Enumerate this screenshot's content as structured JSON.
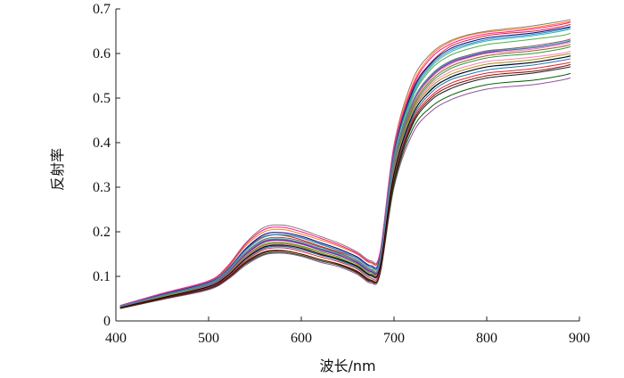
{
  "chart_data": {
    "type": "line",
    "title": "",
    "xlabel": "波长/nm",
    "ylabel": "反射率",
    "xlim": [
      400,
      900
    ],
    "ylim": [
      0,
      0.7
    ],
    "x_ticks": [
      400,
      500,
      600,
      700,
      800,
      900
    ],
    "x_tick_labels": [
      "400",
      "500",
      "600",
      "700",
      "800",
      "900"
    ],
    "y_ticks": [
      0,
      0.1,
      0.2,
      0.3,
      0.4,
      0.5,
      0.6,
      0.7
    ],
    "y_tick_labels": [
      "0",
      "0.1",
      "0.2",
      "0.3",
      "0.4",
      "0.5",
      "0.6",
      "0.7"
    ],
    "grid": false,
    "legend": "none",
    "x": [
      405,
      450,
      500,
      520,
      540,
      560,
      580,
      600,
      620,
      640,
      660,
      675,
      685,
      700,
      720,
      740,
      760,
      780,
      800,
      820,
      850,
      880,
      890
    ],
    "series": [
      {
        "color": "#e41a1c",
        "values": [
          0.033,
          0.058,
          0.085,
          0.115,
          0.16,
          0.19,
          0.192,
          0.182,
          0.168,
          0.155,
          0.14,
          0.12,
          0.14,
          0.38,
          0.52,
          0.58,
          0.615,
          0.63,
          0.64,
          0.645,
          0.65,
          0.66,
          0.665
        ]
      },
      {
        "color": "#377eb8",
        "values": [
          0.03,
          0.052,
          0.078,
          0.1,
          0.14,
          0.165,
          0.168,
          0.16,
          0.148,
          0.136,
          0.12,
          0.1,
          0.12,
          0.33,
          0.46,
          0.52,
          0.545,
          0.56,
          0.57,
          0.575,
          0.58,
          0.59,
          0.595
        ]
      },
      {
        "color": "#4daf4a",
        "values": [
          0.031,
          0.055,
          0.08,
          0.11,
          0.15,
          0.18,
          0.182,
          0.175,
          0.162,
          0.15,
          0.135,
          0.115,
          0.132,
          0.36,
          0.5,
          0.565,
          0.595,
          0.61,
          0.62,
          0.625,
          0.632,
          0.64,
          0.645
        ]
      },
      {
        "color": "#984ea3",
        "values": [
          0.028,
          0.048,
          0.07,
          0.092,
          0.125,
          0.148,
          0.152,
          0.145,
          0.132,
          0.122,
          0.105,
          0.085,
          0.105,
          0.3,
          0.42,
          0.47,
          0.495,
          0.51,
          0.52,
          0.525,
          0.53,
          0.54,
          0.545
        ]
      },
      {
        "color": "#ff7f00",
        "values": [
          0.034,
          0.06,
          0.088,
          0.118,
          0.168,
          0.2,
          0.205,
          0.195,
          0.182,
          0.168,
          0.15,
          0.13,
          0.15,
          0.39,
          0.53,
          0.595,
          0.625,
          0.64,
          0.648,
          0.652,
          0.658,
          0.668,
          0.672
        ]
      },
      {
        "color": "#1a1a1a",
        "values": [
          0.029,
          0.05,
          0.074,
          0.096,
          0.132,
          0.155,
          0.158,
          0.15,
          0.138,
          0.128,
          0.112,
          0.092,
          0.11,
          0.31,
          0.44,
          0.495,
          0.52,
          0.535,
          0.545,
          0.55,
          0.556,
          0.566,
          0.57
        ]
      },
      {
        "color": "#a65628",
        "values": [
          0.032,
          0.056,
          0.082,
          0.108,
          0.15,
          0.178,
          0.182,
          0.174,
          0.16,
          0.148,
          0.132,
          0.112,
          0.13,
          0.35,
          0.48,
          0.54,
          0.57,
          0.585,
          0.595,
          0.6,
          0.606,
          0.615,
          0.62
        ]
      },
      {
        "color": "#f781bf",
        "values": [
          0.03,
          0.053,
          0.077,
          0.102,
          0.142,
          0.168,
          0.172,
          0.165,
          0.152,
          0.14,
          0.124,
          0.104,
          0.122,
          0.335,
          0.47,
          0.53,
          0.558,
          0.572,
          0.582,
          0.586,
          0.592,
          0.6,
          0.605
        ]
      },
      {
        "color": "#17becf",
        "values": [
          0.033,
          0.058,
          0.084,
          0.112,
          0.158,
          0.188,
          0.193,
          0.186,
          0.172,
          0.158,
          0.14,
          0.12,
          0.14,
          0.37,
          0.505,
          0.57,
          0.602,
          0.618,
          0.628,
          0.633,
          0.64,
          0.65,
          0.655
        ]
      },
      {
        "color": "#2ca02c",
        "values": [
          0.031,
          0.054,
          0.079,
          0.104,
          0.145,
          0.172,
          0.176,
          0.168,
          0.156,
          0.144,
          0.128,
          0.108,
          0.126,
          0.345,
          0.475,
          0.535,
          0.565,
          0.58,
          0.59,
          0.595,
          0.6,
          0.61,
          0.615
        ]
      },
      {
        "color": "#d62728",
        "values": [
          0.029,
          0.051,
          0.075,
          0.098,
          0.135,
          0.16,
          0.164,
          0.156,
          0.144,
          0.133,
          0.117,
          0.096,
          0.115,
          0.32,
          0.45,
          0.505,
          0.532,
          0.546,
          0.556,
          0.56,
          0.566,
          0.576,
          0.58
        ]
      },
      {
        "color": "#7f7f7f",
        "values": [
          0.035,
          0.062,
          0.09,
          0.122,
          0.175,
          0.21,
          0.215,
          0.205,
          0.19,
          0.175,
          0.155,
          0.135,
          0.155,
          0.395,
          0.54,
          0.6,
          0.628,
          0.642,
          0.65,
          0.655,
          0.662,
          0.672,
          0.676
        ]
      },
      {
        "color": "#1f77b4",
        "values": [
          0.03,
          0.052,
          0.076,
          0.1,
          0.138,
          0.163,
          0.167,
          0.16,
          0.148,
          0.137,
          0.121,
          0.101,
          0.119,
          0.325,
          0.455,
          0.512,
          0.54,
          0.553,
          0.563,
          0.568,
          0.574,
          0.584,
          0.588
        ]
      },
      {
        "color": "#8c564b",
        "values": [
          0.032,
          0.057,
          0.083,
          0.11,
          0.154,
          0.183,
          0.187,
          0.179,
          0.166,
          0.153,
          0.136,
          0.116,
          0.134,
          0.36,
          0.492,
          0.552,
          0.582,
          0.596,
          0.606,
          0.61,
          0.617,
          0.627,
          0.632
        ]
      },
      {
        "color": "#e377c2",
        "values": [
          0.031,
          0.055,
          0.08,
          0.106,
          0.148,
          0.176,
          0.18,
          0.172,
          0.159,
          0.147,
          0.13,
          0.11,
          0.128,
          0.35,
          0.485,
          0.545,
          0.575,
          0.59,
          0.6,
          0.604,
          0.61,
          0.62,
          0.625
        ]
      },
      {
        "color": "#006400",
        "values": [
          0.028,
          0.049,
          0.072,
          0.094,
          0.128,
          0.15,
          0.154,
          0.147,
          0.135,
          0.125,
          0.108,
          0.088,
          0.108,
          0.305,
          0.43,
          0.48,
          0.505,
          0.52,
          0.53,
          0.535,
          0.54,
          0.55,
          0.555
        ]
      },
      {
        "color": "#00008b",
        "values": [
          0.033,
          0.059,
          0.086,
          0.114,
          0.162,
          0.194,
          0.198,
          0.19,
          0.176,
          0.162,
          0.144,
          0.124,
          0.144,
          0.375,
          0.515,
          0.578,
          0.61,
          0.625,
          0.635,
          0.64,
          0.646,
          0.656,
          0.66
        ]
      },
      {
        "color": "#b8860b",
        "values": [
          0.03,
          0.054,
          0.078,
          0.103,
          0.144,
          0.17,
          0.174,
          0.166,
          0.153,
          0.141,
          0.125,
          0.105,
          0.124,
          0.34,
          0.468,
          0.525,
          0.552,
          0.566,
          0.576,
          0.58,
          0.586,
          0.596,
          0.6
        ]
      },
      {
        "color": "#9400d3",
        "values": [
          0.031,
          0.056,
          0.081,
          0.107,
          0.149,
          0.177,
          0.181,
          0.173,
          0.16,
          0.148,
          0.131,
          0.111,
          0.129,
          0.352,
          0.488,
          0.548,
          0.578,
          0.592,
          0.602,
          0.607,
          0.613,
          0.623,
          0.628
        ]
      },
      {
        "color": "#ff1493",
        "values": [
          0.034,
          0.061,
          0.089,
          0.12,
          0.172,
          0.205,
          0.21,
          0.2,
          0.186,
          0.171,
          0.152,
          0.132,
          0.152,
          0.385,
          0.525,
          0.59,
          0.62,
          0.635,
          0.644,
          0.648,
          0.655,
          0.665,
          0.67
        ]
      },
      {
        "color": "#20b2aa",
        "values": [
          0.032,
          0.056,
          0.082,
          0.109,
          0.152,
          0.18,
          0.184,
          0.176,
          0.163,
          0.151,
          0.134,
          0.114,
          0.132,
          0.355,
          0.49,
          0.55,
          0.58,
          0.594,
          0.604,
          0.608,
          0.614,
          0.624,
          0.629
        ]
      },
      {
        "color": "#000000",
        "values": [
          0.03,
          0.052,
          0.077,
          0.101,
          0.14,
          0.166,
          0.17,
          0.163,
          0.15,
          0.139,
          0.123,
          0.103,
          0.121,
          0.33,
          0.462,
          0.518,
          0.546,
          0.56,
          0.57,
          0.574,
          0.58,
          0.59,
          0.594
        ]
      },
      {
        "color": "#8b0000",
        "values": [
          0.029,
          0.05,
          0.073,
          0.095,
          0.13,
          0.153,
          0.157,
          0.15,
          0.138,
          0.127,
          0.11,
          0.09,
          0.11,
          0.315,
          0.445,
          0.5,
          0.526,
          0.54,
          0.55,
          0.555,
          0.56,
          0.57,
          0.575
        ]
      },
      {
        "color": "#4682b4",
        "values": [
          0.033,
          0.058,
          0.085,
          0.113,
          0.159,
          0.189,
          0.194,
          0.187,
          0.173,
          0.159,
          0.141,
          0.121,
          0.141,
          0.372,
          0.51,
          0.574,
          0.606,
          0.621,
          0.631,
          0.636,
          0.643,
          0.653,
          0.658
        ]
      }
    ]
  }
}
